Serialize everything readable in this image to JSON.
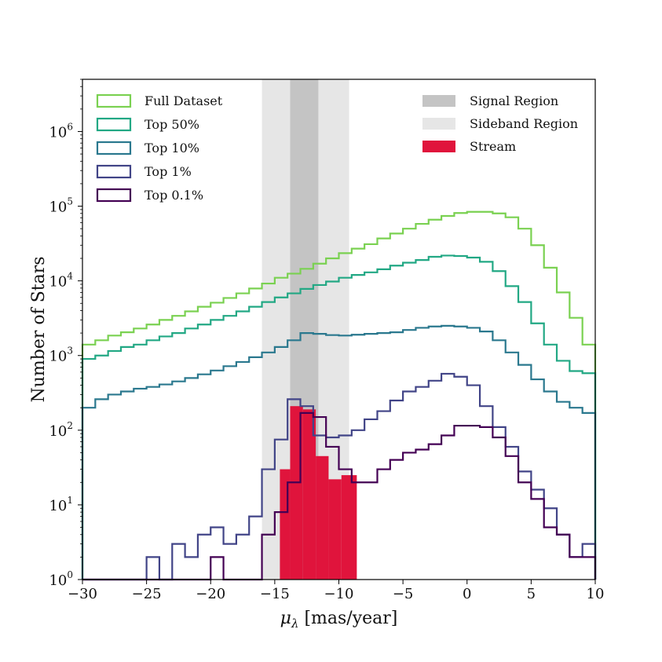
{
  "chart_data": {
    "type": "histogram",
    "xlabel_symbol": "μ",
    "xlabel_sub": "λ",
    "xlabel_unit": " [mas/year]",
    "ylabel": "Number of Stars",
    "xlim": [
      -30,
      10
    ],
    "ylim": [
      1,
      5000000
    ],
    "yscale": "log",
    "bin_width": 1,
    "x_ticks": [
      "−30",
      "−25",
      "−20",
      "−15",
      "−10",
      "−5",
      "0",
      "5",
      "10"
    ],
    "x_tick_values": [
      -30,
      -25,
      -20,
      -15,
      -10,
      -5,
      0,
      5,
      10
    ],
    "y_ticks": [
      {
        "exp": 0,
        "label_base": "10",
        "label_exp": "0"
      },
      {
        "exp": 1,
        "label_base": "10",
        "label_exp": "1"
      },
      {
        "exp": 2,
        "label_base": "10",
        "label_exp": "2"
      },
      {
        "exp": 3,
        "label_base": "10",
        "label_exp": "3"
      },
      {
        "exp": 4,
        "label_base": "10",
        "label_exp": "4"
      },
      {
        "exp": 5,
        "label_base": "10",
        "label_exp": "5"
      },
      {
        "exp": 6,
        "label_base": "10",
        "label_exp": "6"
      }
    ],
    "regions": [
      {
        "name": "Sideband Region",
        "x0": -16,
        "x1": -9.2,
        "color": "#e6e6e6"
      },
      {
        "name": "Signal Region",
        "x0": -13.8,
        "x1": -11.6,
        "color": "#c4c4c4"
      }
    ],
    "bin_edges": [
      -30,
      -29,
      -28,
      -27,
      -26,
      -25,
      -24,
      -23,
      -22,
      -21,
      -20,
      -19,
      -18,
      -17,
      -16,
      -15,
      -14,
      -13,
      -12,
      -11,
      -10,
      -9,
      -8,
      -7,
      -6,
      -5,
      -4,
      -3,
      -2,
      -1,
      0,
      1,
      2,
      3,
      4,
      5,
      6,
      7,
      8,
      9,
      10
    ],
    "series": [
      {
        "name": "Full Dataset",
        "color": "#7ad151",
        "values": [
          1400,
          1600,
          1850,
          2050,
          2300,
          2600,
          3000,
          3400,
          3900,
          4500,
          5100,
          5900,
          6800,
          7900,
          9200,
          11000,
          12500,
          14500,
          17000,
          20000,
          23500,
          27000,
          31000,
          37000,
          43000,
          50000,
          58000,
          66000,
          74000,
          81000,
          84000,
          84000,
          80000,
          71000,
          50000,
          30000,
          15000,
          7000,
          3200,
          1400
        ]
      },
      {
        "name": "Top 50%",
        "color": "#22a884",
        "values": [
          900,
          1000,
          1150,
          1300,
          1400,
          1600,
          1800,
          2000,
          2300,
          2600,
          3000,
          3400,
          3900,
          4500,
          5200,
          6000,
          6800,
          7800,
          8800,
          9800,
          11000,
          12000,
          13000,
          14300,
          16000,
          17500,
          19000,
          21000,
          21800,
          21500,
          20500,
          18000,
          13500,
          8500,
          5200,
          2700,
          1400,
          850,
          620,
          580
        ]
      },
      {
        "name": "Top 10%",
        "color": "#2a788e",
        "values": [
          200,
          260,
          300,
          330,
          360,
          380,
          410,
          450,
          500,
          560,
          630,
          720,
          820,
          950,
          1100,
          1300,
          1600,
          2000,
          1950,
          1880,
          1850,
          1900,
          1950,
          2000,
          2050,
          2200,
          2350,
          2450,
          2500,
          2450,
          2350,
          2100,
          1600,
          1100,
          750,
          480,
          330,
          240,
          200,
          170
        ]
      },
      {
        "name": "Top 1%",
        "color": "#414487",
        "values": [
          1,
          1,
          1,
          1,
          1,
          2,
          1,
          3,
          2,
          4,
          5,
          3,
          4,
          7,
          30,
          75,
          260,
          210,
          85,
          80,
          85,
          100,
          140,
          180,
          250,
          330,
          380,
          460,
          570,
          520,
          400,
          210,
          110,
          60,
          28,
          16,
          9,
          4,
          2,
          3
        ]
      },
      {
        "name": "Top 0.1%",
        "color": "#440154",
        "values": [
          1,
          1,
          1,
          1,
          1,
          1,
          1,
          1,
          1,
          1,
          2,
          1,
          1,
          1,
          4,
          8,
          20,
          170,
          150,
          60,
          30,
          20,
          20,
          30,
          40,
          50,
          55,
          65,
          85,
          115,
          115,
          110,
          80,
          45,
          20,
          12,
          5,
          4,
          2,
          2
        ]
      }
    ],
    "stream": {
      "name": "Stream",
      "color": "#e0143c",
      "bin_edges": [
        -14.6,
        -13.8,
        -12.8,
        -11.8,
        -10.8,
        -9.8,
        -8.6
      ],
      "values": [
        30,
        210,
        190,
        45,
        22,
        25
      ]
    },
    "legend_lines": [
      "Full Dataset",
      "Top 50%",
      "Top 10%",
      "Top 1%",
      "Top 0.1%"
    ],
    "legend_regions": [
      "Signal Region",
      "Sideband Region",
      "Stream"
    ]
  }
}
